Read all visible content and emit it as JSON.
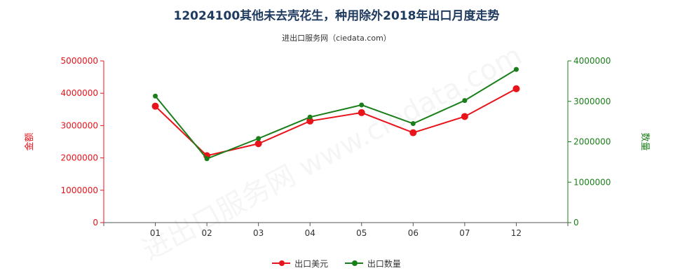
{
  "chart_data": {
    "type": "line",
    "title": "12024100其他未去壳花生，种用除外2018年出口月度走势",
    "subtitle": "进出口服务网（ciedata.com）",
    "categories": [
      "01",
      "02",
      "03",
      "04",
      "05",
      "06",
      "07",
      "12"
    ],
    "ylabel_left": "金额",
    "ylabel_right": "数量",
    "ylim_left": [
      0,
      5000000
    ],
    "ylim_right": [
      0,
      4000000
    ],
    "yticks_left": [
      "0",
      "1000000",
      "2000000",
      "3000000",
      "4000000",
      "5000000"
    ],
    "yticks_right": [
      "0",
      "1000000",
      "2000000",
      "3000000",
      "4000000"
    ],
    "series": [
      {
        "name": "出口美元",
        "axis": "left",
        "color": "#e8141b",
        "values": [
          3600000,
          2070000,
          2440000,
          3140000,
          3400000,
          2780000,
          3280000,
          4140000
        ]
      },
      {
        "name": "出口数量",
        "axis": "right",
        "color": "#1a7f1a",
        "values": [
          3130000,
          1580000,
          2080000,
          2610000,
          2910000,
          2450000,
          3020000,
          3790000
        ]
      }
    ],
    "grid": false,
    "legend_position": "bottom"
  },
  "watermark": "进出口服务网 www.ciedata.com"
}
